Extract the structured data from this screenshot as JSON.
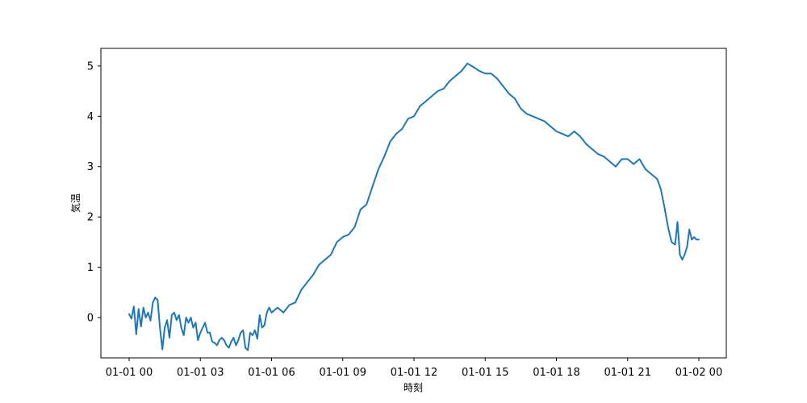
{
  "chart_data": {
    "type": "line",
    "title": "",
    "xlabel": "時刻",
    "ylabel": "気温",
    "xlim": [
      "2023-01-01 00:00",
      "2023-01-02 00:00"
    ],
    "ylim": [
      -0.8,
      5.35
    ],
    "grid": false,
    "x_ticks": [
      "01-01 00",
      "01-01 03",
      "01-01 06",
      "01-01 09",
      "01-01 12",
      "01-01 15",
      "01-01 18",
      "01-01 21",
      "01-02 00"
    ],
    "x_tick_hours": [
      0,
      3,
      6,
      9,
      12,
      15,
      18,
      21,
      24
    ],
    "y_ticks": [
      "0",
      "1",
      "2",
      "3",
      "4",
      "5"
    ],
    "y_tick_values": [
      0,
      1,
      2,
      3,
      4,
      5
    ],
    "series": [
      {
        "color": "#1f77b4",
        "x_hours": [
          0.0,
          0.1,
          0.2,
          0.3,
          0.4,
          0.5,
          0.6,
          0.7,
          0.8,
          0.9,
          1.0,
          1.1,
          1.2,
          1.3,
          1.4,
          1.5,
          1.6,
          1.7,
          1.8,
          1.9,
          2.0,
          2.1,
          2.2,
          2.3,
          2.4,
          2.5,
          2.6,
          2.7,
          2.8,
          2.9,
          3.0,
          3.1,
          3.2,
          3.3,
          3.4,
          3.5,
          3.6,
          3.7,
          3.8,
          3.9,
          4.0,
          4.1,
          4.2,
          4.3,
          4.4,
          4.5,
          4.6,
          4.7,
          4.8,
          4.9,
          5.0,
          5.1,
          5.2,
          5.3,
          5.4,
          5.5,
          5.6,
          5.7,
          5.8,
          5.9,
          6.0,
          6.25,
          6.5,
          6.75,
          7.0,
          7.25,
          7.5,
          7.75,
          8.0,
          8.25,
          8.5,
          8.75,
          9.0,
          9.25,
          9.5,
          9.75,
          10.0,
          10.25,
          10.5,
          10.75,
          11.0,
          11.25,
          11.5,
          11.75,
          12.0,
          12.25,
          12.5,
          12.75,
          13.0,
          13.25,
          13.5,
          13.75,
          14.0,
          14.25,
          14.5,
          14.75,
          15.0,
          15.25,
          15.5,
          15.75,
          16.0,
          16.25,
          16.5,
          16.75,
          17.0,
          17.25,
          17.5,
          17.75,
          18.0,
          18.25,
          18.5,
          18.75,
          19.0,
          19.25,
          19.5,
          19.75,
          20.0,
          20.25,
          20.5,
          20.75,
          21.0,
          21.25,
          21.5,
          21.75,
          22.0,
          22.25,
          22.4,
          22.55,
          22.7,
          22.85,
          23.0,
          23.1,
          23.2,
          23.3,
          23.4,
          23.5,
          23.6,
          23.7,
          23.8,
          23.9,
          24.0
        ],
        "y": [
          0.07,
          -0.02,
          0.22,
          -0.33,
          0.17,
          -0.18,
          0.2,
          0.0,
          0.1,
          -0.06,
          0.3,
          0.4,
          0.35,
          -0.2,
          -0.63,
          -0.2,
          -0.05,
          -0.4,
          0.05,
          0.1,
          -0.05,
          0.05,
          -0.2,
          -0.35,
          0.0,
          -0.1,
          0.0,
          -0.2,
          -0.1,
          -0.45,
          -0.3,
          -0.2,
          -0.1,
          -0.3,
          -0.3,
          -0.48,
          -0.5,
          -0.55,
          -0.45,
          -0.4,
          -0.45,
          -0.55,
          -0.6,
          -0.48,
          -0.4,
          -0.55,
          -0.45,
          -0.3,
          -0.25,
          -0.6,
          -0.65,
          -0.3,
          -0.35,
          -0.25,
          -0.42,
          0.05,
          -0.2,
          -0.15,
          0.1,
          0.2,
          0.1,
          0.2,
          0.1,
          0.25,
          0.3,
          0.55,
          0.7,
          0.85,
          1.05,
          1.15,
          1.25,
          1.5,
          1.6,
          1.65,
          1.8,
          2.15,
          2.25,
          2.6,
          2.95,
          3.2,
          3.5,
          3.65,
          3.75,
          3.95,
          4.0,
          4.2,
          4.3,
          4.4,
          4.5,
          4.55,
          4.7,
          4.8,
          4.9,
          5.05,
          4.98,
          4.9,
          4.85,
          4.85,
          4.75,
          4.6,
          4.45,
          4.35,
          4.15,
          4.05,
          4.0,
          3.95,
          3.9,
          3.8,
          3.7,
          3.65,
          3.6,
          3.7,
          3.6,
          3.45,
          3.35,
          3.25,
          3.2,
          3.1,
          3.0,
          3.15,
          3.15,
          3.05,
          3.15,
          2.95,
          2.85,
          2.75,
          2.55,
          2.2,
          1.8,
          1.5,
          1.45,
          1.9,
          1.25,
          1.15,
          1.25,
          1.4,
          1.75,
          1.55,
          1.6,
          1.55,
          1.55
        ]
      }
    ]
  }
}
